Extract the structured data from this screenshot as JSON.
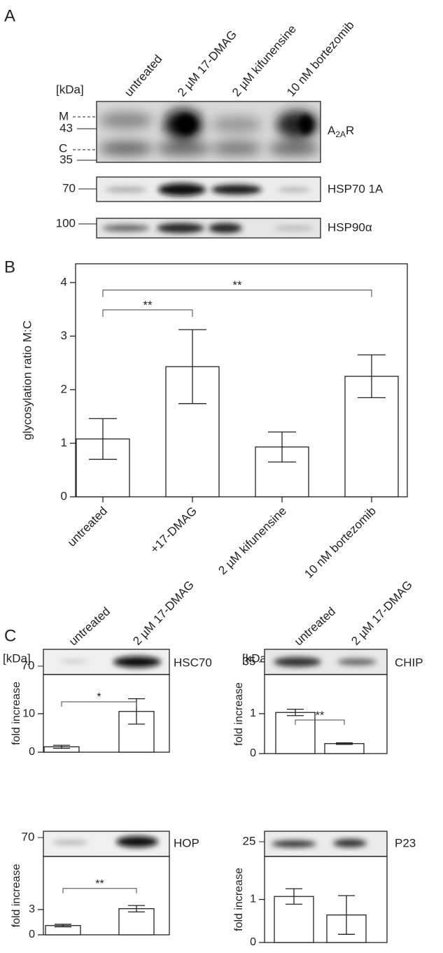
{
  "panel_labels": [
    "A",
    "B",
    "C"
  ],
  "panel_a": {
    "lanes": [
      "untreated",
      "2 µM 17-DMAG",
      "2 µM kifunensine",
      "10 nM bortezomib"
    ],
    "kda": "[kDa]",
    "a2ar": {
      "main": "A",
      "sub": "2A",
      "end": "R",
      "markers": [
        "M",
        43,
        "C",
        35
      ]
    },
    "hsp70": {
      "label": "HSP70 1A",
      "marker": 70
    },
    "hsp90": {
      "label": "HSP90α",
      "marker": 100
    }
  },
  "panel_c": {
    "lanes": [
      "untreated",
      "2 µM 17-DMAG"
    ],
    "lanes_right": [
      "untreated",
      "2 µM 17-DMAG"
    ],
    "kda": "[kDa]",
    "kda_right": "[kDa]",
    "blots": [
      {
        "label": "HSC70",
        "marker": 70
      },
      {
        "label": "CHIP",
        "marker": 35
      },
      {
        "label": "HOP",
        "marker": 70
      },
      {
        "label": "P23",
        "marker": 25
      }
    ]
  },
  "chart_data": [
    {
      "type": "bar",
      "ylabel": "glycosylation ratio M:C",
      "categories": [
        "untreated",
        "+17-DMAG",
        "2 µM kifunensine",
        "10 nM bortezomib"
      ],
      "values": [
        1.08,
        2.43,
        0.93,
        2.25
      ],
      "errors": [
        0.38,
        0.69,
        0.28,
        0.4
      ],
      "ylim": [
        0,
        4.35
      ],
      "yticks": [
        0,
        1,
        2,
        3,
        4
      ],
      "color": "#ffffff",
      "annotations": [
        {
          "text": "**",
          "from": 0,
          "to": 1,
          "y": 3.49
        },
        {
          "text": "**",
          "from": 0,
          "to": 3,
          "y": 3.86
        }
      ]
    },
    {
      "type": "bar",
      "ylabel": "fold increase",
      "values": [
        1.4,
        10.6
      ],
      "errors": [
        0.4,
        3.3
      ],
      "ylim": [
        0,
        20.2
      ],
      "yticks": [
        0,
        10
      ],
      "color": "#ffffff",
      "annotations": [
        {
          "text": "*",
          "from": 0,
          "to": 1,
          "y": 13.1
        }
      ]
    },
    {
      "type": "bar",
      "ylabel": "fold increase",
      "values": [
        1.03,
        0.25
      ],
      "errors": [
        0.08,
        0.02
      ],
      "ylim": [
        0,
        1.98
      ],
      "yticks": [
        0,
        1
      ],
      "color": "#ffffff",
      "annotations": [
        {
          "text": "**",
          "from": 0,
          "to": 1,
          "y": 0.84
        }
      ]
    },
    {
      "type": "bar",
      "ylabel": "fold increase",
      "values": [
        1.1,
        3.1
      ],
      "errors": [
        0.15,
        0.38
      ],
      "ylim": [
        0,
        9.3
      ],
      "yticks": [
        0,
        3
      ],
      "color": "#ffffff",
      "annotations": [
        {
          "text": "**",
          "from": 0,
          "to": 1,
          "y": 5.5
        }
      ]
    },
    {
      "type": "bar",
      "ylabel": "fold increase",
      "values": [
        1.07,
        0.64
      ],
      "errors": [
        0.18,
        0.45
      ],
      "ylim": [
        0,
        2.0
      ],
      "yticks": [
        0,
        1
      ],
      "color": "#ffffff",
      "annotations": []
    }
  ]
}
